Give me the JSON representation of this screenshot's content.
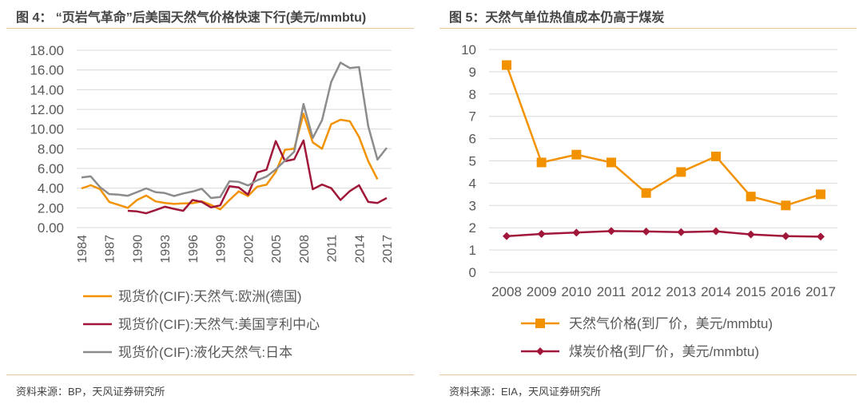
{
  "left_panel": {
    "title": "图 4：  “页岩气革命”后美国天然气价格快速下行(美元/mmbtu)",
    "source": "资料来源：BP，天风证券研究所"
  },
  "right_panel": {
    "title": "图 5：天然气单位热值成本仍高于煤炭",
    "source": "资料来源：EIA，天风证券研究所"
  },
  "colors": {
    "orange": "#f39200",
    "crimson": "#a0173a",
    "gray": "#8c8c8c",
    "rule": "#e8c49a",
    "grid": "#d9d9d9"
  },
  "chart_data": [
    {
      "type": "line",
      "title": "",
      "x": [
        1984,
        1985,
        1986,
        1987,
        1988,
        1989,
        1990,
        1991,
        1992,
        1993,
        1994,
        1995,
        1996,
        1997,
        1998,
        1999,
        2000,
        2001,
        2002,
        2003,
        2004,
        2005,
        2006,
        2007,
        2008,
        2009,
        2010,
        2011,
        2012,
        2013,
        2014,
        2015,
        2016,
        2017
      ],
      "xticks": [
        "1984",
        "1987",
        "1990",
        "1993",
        "1996",
        "1999",
        "2002",
        "2005",
        "2008",
        "2011",
        "2014",
        "2017"
      ],
      "yticks": [
        "0.00",
        "2.00",
        "4.00",
        "6.00",
        "8.00",
        "10.00",
        "12.00",
        "14.00",
        "16.00",
        "18.00"
      ],
      "ylim": [
        0,
        18
      ],
      "grid": true,
      "legend": "bottom",
      "series": [
        {
          "name": "现货价(CIF):天然气:欧洲(德国)",
          "color": "#f39200",
          "values": [
            3.97,
            4.3,
            3.9,
            2.6,
            2.3,
            2.0,
            2.8,
            3.25,
            2.66,
            2.5,
            2.4,
            2.45,
            2.47,
            2.66,
            2.3,
            1.85,
            2.8,
            3.67,
            3.2,
            4.15,
            4.35,
            5.65,
            7.9,
            8.0,
            11.55,
            8.65,
            8.0,
            10.5,
            10.95,
            10.8,
            9.2,
            6.75,
            4.9,
            null
          ]
        },
        {
          "name": "现货价(CIF):天然气:美国亨利中心",
          "color": "#a0173a",
          "values": [
            null,
            null,
            null,
            null,
            null,
            1.7,
            1.64,
            1.45,
            1.77,
            2.12,
            1.9,
            1.7,
            2.8,
            2.6,
            2.04,
            2.26,
            4.2,
            4.07,
            3.35,
            5.6,
            5.87,
            8.78,
            6.74,
            6.93,
            8.85,
            3.89,
            4.37,
            4.0,
            2.8,
            3.7,
            4.3,
            2.6,
            2.5,
            3.0
          ]
        },
        {
          "name": "现货价(CIF):液化天然气:日本",
          "color": "#8c8c8c",
          "values": [
            5.08,
            5.2,
            4.1,
            3.4,
            3.35,
            3.23,
            3.6,
            3.97,
            3.6,
            3.5,
            3.2,
            3.46,
            3.66,
            3.94,
            3.0,
            3.1,
            4.7,
            4.64,
            4.27,
            4.8,
            5.18,
            5.9,
            6.8,
            7.7,
            12.55,
            9.1,
            10.9,
            14.8,
            16.75,
            16.2,
            16.3,
            10.3,
            6.9,
            8.1
          ]
        }
      ]
    },
    {
      "type": "line",
      "title": "",
      "categories": [
        "2008",
        "2009",
        "2010",
        "2011",
        "2012",
        "2013",
        "2014",
        "2015",
        "2016",
        "2017"
      ],
      "yticks": [
        "0",
        "1",
        "2",
        "3",
        "4",
        "5",
        "6",
        "7",
        "8",
        "9",
        "10"
      ],
      "ylim": [
        0,
        10
      ],
      "grid": true,
      "legend": "bottom",
      "series": [
        {
          "name": "天然气价格(到厂价，美元/mmbtu)",
          "color": "#f39200",
          "marker": "square",
          "values": [
            9.3,
            4.93,
            5.28,
            4.93,
            3.56,
            4.5,
            5.2,
            3.4,
            3.0,
            3.5
          ]
        },
        {
          "name": "煤炭价格(到厂价，美元/mmbtu)",
          "color": "#a0173a",
          "marker": "diamond",
          "values": [
            1.62,
            1.72,
            1.78,
            1.85,
            1.83,
            1.8,
            1.84,
            1.7,
            1.62,
            1.6
          ]
        }
      ]
    }
  ]
}
